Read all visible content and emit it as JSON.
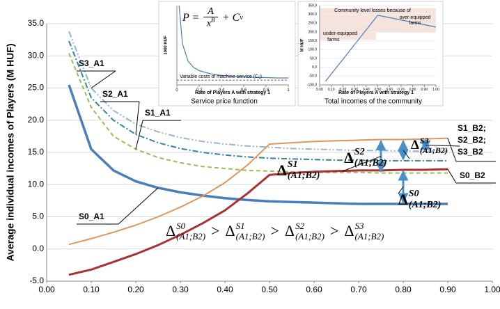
{
  "chart_data": [
    {
      "type": "line",
      "ylabel": "Average individual incomes of Players (M HUF)",
      "x": [
        0.05,
        0.1,
        0.15,
        0.2,
        0.25,
        0.3,
        0.35,
        0.4,
        0.45,
        0.5,
        0.55,
        0.6,
        0.65,
        0.7,
        0.75,
        0.8,
        0.85,
        0.9
      ],
      "xlim": [
        0,
        1
      ],
      "xticks": [
        {
          "value": 0,
          "label": "0.00"
        },
        {
          "value": 0.1,
          "label": "0.10"
        },
        {
          "value": 0.2,
          "label": "0.20"
        },
        {
          "value": 0.3,
          "label": "0.30"
        },
        {
          "value": 0.4,
          "label": "0.40"
        },
        {
          "value": 0.5,
          "label": "0.50"
        },
        {
          "value": 0.6,
          "label": "0.60"
        },
        {
          "value": 0.7,
          "label": "0.70"
        },
        {
          "value": 0.8,
          "label": "0.80"
        },
        {
          "value": 0.9,
          "label": "0.90"
        },
        {
          "value": 1,
          "label": "1.00"
        }
      ],
      "ylim": [
        -5,
        35
      ],
      "yticks": [
        {
          "value": -5,
          "label": "-5.0"
        },
        {
          "value": 0,
          "label": "0.0"
        },
        {
          "value": 5,
          "label": "5.0"
        },
        {
          "value": 10,
          "label": "10.0"
        },
        {
          "value": 15,
          "label": "15.0"
        },
        {
          "value": 20,
          "label": "20.0"
        },
        {
          "value": 25,
          "label": "25.0"
        },
        {
          "value": 30,
          "label": "30.0"
        },
        {
          "value": 35,
          "label": "35.0"
        }
      ],
      "grid": true,
      "series": [
        {
          "name": "S3_A1",
          "color": "#93b3d7",
          "dash": "9,3,2,3,2,3",
          "values": [
            33.8,
            25.0,
            21.5,
            19.4,
            18.2,
            17.3,
            16.7,
            16.3,
            16.0,
            15.8,
            15.6,
            15.5,
            15.4,
            15.3,
            15.3,
            15.2,
            15.2,
            15.2
          ]
        },
        {
          "name": "S2_A1",
          "color": "#31859c",
          "dash": "8,3,2,3",
          "values": [
            32.3,
            23.5,
            20.0,
            17.8,
            16.5,
            15.6,
            15.0,
            14.6,
            14.3,
            14.1,
            14.0,
            13.9,
            13.8,
            13.8,
            13.7,
            13.7,
            13.7,
            13.7
          ]
        },
        {
          "name": "S1_A1",
          "color": "#9bbb59",
          "dash": "6,4",
          "values": [
            30.4,
            22.0,
            17.5,
            15.5,
            14.2,
            13.4,
            12.8,
            12.5,
            12.2,
            12.1,
            12.0,
            11.9,
            11.9,
            11.9,
            11.8,
            11.8,
            11.8,
            11.8
          ]
        },
        {
          "name": "S0_A1",
          "color": "#4a7ebb",
          "width": 3.5,
          "values": [
            25.5,
            15.5,
            12.2,
            10.5,
            9.5,
            8.8,
            8.3,
            7.9,
            7.6,
            7.4,
            7.3,
            7.2,
            7.1,
            7.0,
            7.0,
            7.0,
            7.0,
            7.0
          ]
        },
        {
          "name": "S1_B2; S2_B2; S3_B2",
          "color": "#e0955a",
          "values": [
            0.7,
            1.6,
            2.6,
            3.7,
            5.0,
            6.5,
            8.2,
            10.3,
            13.0,
            16.3,
            16.5,
            16.7,
            16.8,
            16.9,
            17.0,
            17.0,
            17.1,
            17.2
          ]
        },
        {
          "name": "S0_B2",
          "color": "#a83232",
          "width": 3,
          "values": [
            -4.0,
            -3.2,
            -2.0,
            -0.8,
            0.6,
            2.2,
            4.0,
            6.0,
            8.6,
            11.5,
            11.8,
            12.0,
            12.1,
            12.2,
            12.2,
            12.3,
            12.3,
            12.4
          ]
        }
      ],
      "deltas": [
        {
          "symbol": "Δ",
          "sup": "S1",
          "sub": "(A1;B2)"
        },
        {
          "symbol": "Δ",
          "sup": "S2",
          "sub": "(A1;B2)"
        },
        {
          "symbol": "Δ",
          "sup": "S3",
          "sub": "(A1;B2)"
        },
        {
          "symbol": "Δ",
          "sup": "S0",
          "sub": "(A1;B2)"
        }
      ],
      "inequality": [
        {
          "symbol": "Δ",
          "sup": "S0",
          "sub": "(A1;B2)"
        },
        {
          "symbol": "Δ",
          "sup": "S1",
          "sub": "(A1;B2)"
        },
        {
          "symbol": "Δ",
          "sup": "S2",
          "sub": "(A1;B2)"
        },
        {
          "symbol": "Δ",
          "sup": "S3",
          "sub": "(A1;B2)"
        }
      ],
      "comparison": ">"
    },
    {
      "type": "line",
      "title": "Service price function",
      "xlabel": "Rate of Players A with strategy 1",
      "ylabel": "1000 HUF",
      "formula": {
        "lhs": "P =",
        "num": "A",
        "den": "x",
        "den_exp": "B",
        "rest": "+ C",
        "rest_sub": "v"
      },
      "cv_label": "Variable costs of machine service (C",
      "cv_label_sub": "v",
      "cv_label_end": ")",
      "cv_level": 15,
      "x": [
        0.02,
        0.05,
        0.1,
        0.15,
        0.2,
        0.3,
        0.4,
        0.5,
        0.6,
        0.7,
        0.8,
        0.9,
        1
      ],
      "xlim": [
        0,
        1
      ],
      "xticks": [
        0,
        0.2,
        0.4,
        0.6,
        0.8,
        1
      ],
      "ylim": [
        0,
        250
      ],
      "series": [
        {
          "color": "#4a7ebb",
          "values": [
            250,
            130,
            75,
            55,
            45,
            35,
            30,
            27,
            25,
            24,
            23,
            22,
            22
          ]
        }
      ]
    },
    {
      "type": "line",
      "title": "Total incomes of the community",
      "xlabel": "Rate of Players A with strategy 1",
      "ylabel": "M HUF",
      "notes": [
        "Community level losses because of",
        "over-equipped",
        "farms",
        "under-equipped",
        "farms"
      ],
      "x": [
        0.05,
        0.5,
        1
      ],
      "xlim": [
        0,
        1
      ],
      "xticks": [
        {
          "value": 0,
          "label": "0.00"
        },
        {
          "value": 0.1,
          "label": "0.10"
        },
        {
          "value": 0.2,
          "label": "0.20"
        },
        {
          "value": 0.3,
          "label": "0.30"
        },
        {
          "value": 0.4,
          "label": "0.40"
        },
        {
          "value": 0.5,
          "label": "0.50"
        },
        {
          "value": 0.6,
          "label": "0.60"
        },
        {
          "value": 0.7,
          "label": "0.70"
        },
        {
          "value": 0.8,
          "label": "0.80"
        },
        {
          "value": 0.9,
          "label": "0.90"
        },
        {
          "value": 1,
          "label": "1.00"
        }
      ],
      "ylim": [
        -100,
        350
      ],
      "yticks": [
        {
          "value": -100,
          "label": "-100.0"
        },
        {
          "value": -50,
          "label": "-50.0"
        },
        {
          "value": 0,
          "label": "0.0"
        },
        {
          "value": 50,
          "label": "50.0"
        },
        {
          "value": 100,
          "label": "100.0"
        },
        {
          "value": 150,
          "label": "150.0"
        },
        {
          "value": 200,
          "label": "200.0"
        },
        {
          "value": 250,
          "label": "250.0"
        },
        {
          "value": 300,
          "label": "300.0"
        },
        {
          "value": 350,
          "label": "350.0"
        }
      ],
      "series": [
        {
          "color": "#4a7ebb",
          "values": [
            -80,
            295,
            228
          ]
        }
      ]
    }
  ]
}
